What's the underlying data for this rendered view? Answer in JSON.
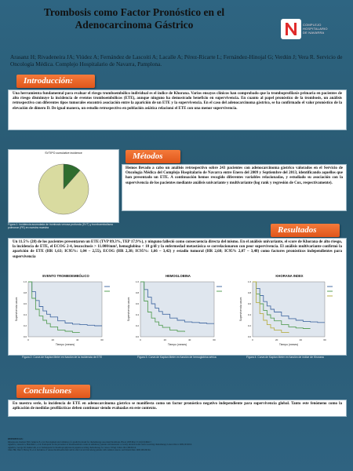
{
  "header": {
    "title": "Trombosis como Factor Pronóstico en el Adenocarcinoma Gástrico",
    "authors": "Arasanz H; Rivadeneira JA; Viúdez A; Fernández de Lascoiti A; Lacalle A; Pérez-Ricarte L; Fernández-Hinojal G; Verdún J; Vera R. Servicio de Oncología Médica. Complejo Hospitalario de Navarra, Pamplona."
  },
  "logo": {
    "line1": "COMPLEJO",
    "line2": "HOSPITALARIO",
    "line3": "DE NAVARRA",
    "accent": "#e02b2b"
  },
  "intro": {
    "heading": "Introducción:",
    "text": "Una herramienta fundamental para evaluar el riesgo tromboembólico individual es el índice de Khorana. Varios ensayos clínicos han comprobado que la tromboprofilaxis primaria en pacientes de alto riesgo disminuye la incidencia de eventos tromboembólicos (ETE), aunque ninguno ha demostrado beneficio en supervivencia. En cuanto al papel pronóstico de la trombosis, un análisis retrospectivo con diferentes tipos tumorales encontró asociación entre la aparición de un ETE y la supervivencia. En el caso del adenocarcinoma gástrico, se ha confirmado el valor pronóstico de la elevación de dímero D. De igual manera, un estudio retrospectivo en población asiática relacionó el ETE con una menor supervivencia."
  },
  "figure1": {
    "title": "SVTIPO cumulative incidence",
    "caption": "Figura 1: Incidencia acumulada de trombosis venosa profunda (DVT) y tromboembolismo pulmonar (PE) en nuestra muestra"
  },
  "metodos": {
    "heading": "Métodos",
    "text": "Hemos llevado a cabo un análisis retrospectivo sobre 243 pacientes con adenocarcinoma gástrico valorados en el Servicio de Oncología Médica del Complejo Hospitalario de Navarra entre Enero del 2009 y Septiembre del 2013, identificando aquellos que han presentado un ETE. A continuación hemos recogido diferentes variables relacionadas, y estudiado su asociación con la supervivencia de los pacientes mediante análisis univariante y multivariante (log rank y regresión de Cox, respectivamente)."
  },
  "resultados": {
    "heading": "Resultados",
    "text": "Un 11.5% (28) de los pacientes presentaron un ETE (TVP 89.3%, TEP 17.9%), y ninguno falleció como consecuencia directa del mismo. En el análisis univariante, el score de Khorana de alto riesgo, la incidencia de ETE, el ECOG 2-4, leucocitosis > 11.000/mm³, hemoglobina < 10 g/dl y la enfermedad metastásica se correlacionaron con peor supervivencia. El análisis multivariante confirmó la aparición de ETE (HR 1,63; IC95%: 1,04 – 2,55), ECOG (HR 2,38; IC95%: 1,66 – 3,42) y estadio tumoral (HR 2,68; IC95% 2,07 – 3,48) como factores pronósticos independientes para supervivencia"
  },
  "km_charts": [
    {
      "title": "EVENTO TROMBOEMBÓLICO",
      "caption": "Figura 2: Curva de Kaplan Meier en función de la incidencia de ETE",
      "ylabel": "Supervivencia acum",
      "xlabel": "Tiempo (meses)"
    },
    {
      "title": "HEMOGLOBINA",
      "caption": "Figura 3: Curva de Kaplan Meier en función de hemoglobina sérica",
      "ylabel": "Supervivencia acum",
      "xlabel": "Tiempo (meses)"
    },
    {
      "title": "KHORANA INDEX",
      "caption": "Figura 4: Curva de Kaplan Meier en función de índice de Khorana",
      "ylabel": "Supervivencia acum",
      "xlabel": "Tiempo (meses)"
    }
  ],
  "conclusiones": {
    "heading": "Conclusiones",
    "text": "En nuestra serie, la incidencia de ETE en adenocarcinoma gástrico se manifiesta como un factor pronóstico negativo independiente para supervivencia global. Tanto este fenómeno como la aplicación de medidas profilácticas deben continuar siendo evaluadas en este contexto."
  },
  "references": {
    "heading": "REFERENCIAS:",
    "lines": [
      "Khorana AA, Kuderer NM, Culakova E, et al. Development and validation of a predictive model for chemotherapy-associated thrombosis. Blood. 2008 May 15;111(10):4902-7.",
      "Agnelli G, Gussoni G, Bianchini C, et al. Nadroparin for the prevention of thromboembolic events in ambulatory patients with metastatic or locally advanced solid cancer receiving chemotherapy. Lancet Oncol. 2009;10:943-9.",
      "Agnelli G, George DJ, Kakkar AK, et al. Semuloparin for thromboprophylaxis in patients receiving chemotherapy for cancer. N Engl J Med. 2012;366:601-9.",
      "Chew HK, Wun T, Harvey D, et al. Incidence of venous thromboembolism and its effect on survival among patients with common cancers. Arch Intern Med. 2006;166:458-64."
    ]
  },
  "chart_data": [
    {
      "type": "pie",
      "title": "SVTIPO cumulative incidence",
      "categories": [
        "",
        ""
      ],
      "values": [
        88.5,
        11.5
      ],
      "colors": [
        "#d9dba0",
        "#2f6d2f"
      ]
    },
    {
      "type": "line",
      "title": "EVENTO TROMBOEMBÓLICO",
      "xlabel": "Tiempo (meses)",
      "ylabel": "Supervivencia acum",
      "xlim": [
        0,
        60
      ],
      "ylim": [
        0,
        1
      ],
      "series": [
        {
          "x": [
            0,
            3,
            6,
            9,
            12,
            15,
            18,
            24,
            30,
            36,
            42,
            48,
            54,
            60
          ],
          "values": [
            1,
            0.82,
            0.66,
            0.55,
            0.47,
            0.41,
            0.36,
            0.29,
            0.25,
            0.23,
            0.22,
            0.21,
            0.2,
            0.2
          ],
          "color": "#4a6fa5"
        },
        {
          "x": [
            0,
            3,
            6,
            9,
            12,
            15,
            18,
            24,
            30,
            36,
            42
          ],
          "values": [
            1,
            0.7,
            0.5,
            0.38,
            0.3,
            0.24,
            0.18,
            0.12,
            0.1,
            0.08,
            0.08
          ],
          "color": "#5aa05a"
        }
      ]
    },
    {
      "type": "line",
      "title": "HEMOGLOBINA",
      "xlabel": "Tiempo (meses)",
      "ylabel": "Supervivencia acum",
      "xlim": [
        0,
        60
      ],
      "ylim": [
        0,
        1
      ],
      "series": [
        {
          "x": [
            0,
            3,
            6,
            9,
            12,
            15,
            18,
            24,
            30,
            36,
            42,
            48,
            54,
            60
          ],
          "values": [
            1,
            0.86,
            0.72,
            0.6,
            0.52,
            0.46,
            0.41,
            0.34,
            0.3,
            0.27,
            0.26,
            0.25,
            0.24,
            0.24
          ],
          "color": "#4a6fa5"
        },
        {
          "x": [
            0,
            3,
            6,
            9,
            12,
            15,
            18,
            24,
            30,
            36
          ],
          "values": [
            1,
            0.65,
            0.45,
            0.34,
            0.27,
            0.21,
            0.17,
            0.12,
            0.1,
            0.09
          ],
          "color": "#5aa05a"
        }
      ]
    },
    {
      "type": "line",
      "title": "KHORANA INDEX",
      "xlabel": "Tiempo (meses)",
      "ylabel": "Supervivencia acum",
      "xlim": [
        0,
        60
      ],
      "ylim": [
        0,
        1
      ],
      "series": [
        {
          "x": [
            0,
            3,
            6,
            9,
            12,
            15,
            18,
            24,
            30,
            36,
            42,
            48,
            54,
            60
          ],
          "values": [
            1,
            0.88,
            0.75,
            0.64,
            0.56,
            0.5,
            0.45,
            0.38,
            0.33,
            0.3,
            0.28,
            0.27,
            0.26,
            0.26
          ],
          "color": "#4a6fa5"
        },
        {
          "x": [
            0,
            3,
            6,
            9,
            12,
            15,
            18,
            24,
            30,
            36,
            42,
            48
          ],
          "values": [
            1,
            0.78,
            0.6,
            0.48,
            0.4,
            0.34,
            0.29,
            0.22,
            0.18,
            0.16,
            0.15,
            0.15
          ],
          "color": "#5aa05a"
        },
        {
          "x": [
            0,
            3,
            6,
            9,
            12,
            15,
            18,
            24,
            30
          ],
          "values": [
            1,
            0.62,
            0.42,
            0.3,
            0.22,
            0.16,
            0.12,
            0.08,
            0.07
          ],
          "color": "#b8b04a"
        }
      ]
    }
  ]
}
